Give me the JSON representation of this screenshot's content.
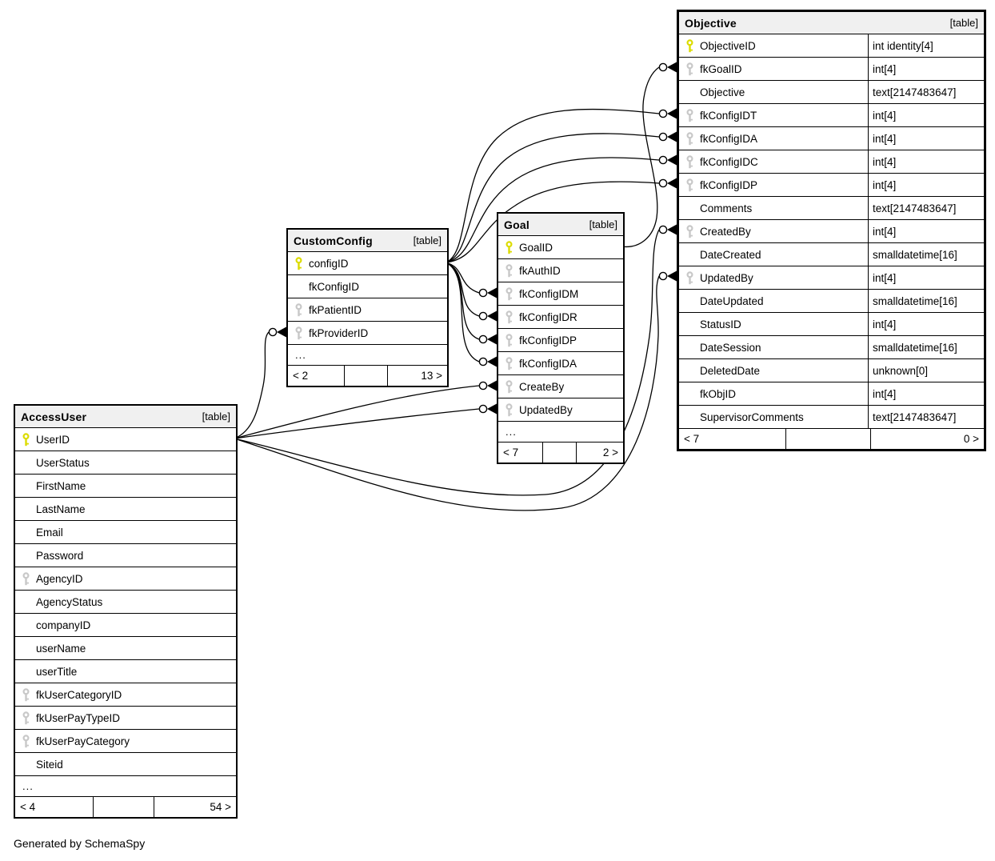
{
  "diagram": {
    "credit": "Generated by SchemaSpy",
    "tag_label": "[table]"
  },
  "colors": {
    "primary_key": "#dcdc00",
    "foreign_key": "#c8c8c8",
    "header_bg": "#f0f0f0",
    "border": "#000000",
    "line": "#000000",
    "background": "#ffffff"
  },
  "tables": [
    {
      "name": "AccessUser",
      "tag": "[table]",
      "columns": [
        {
          "name": "UserID",
          "key": "primary"
        },
        {
          "name": "UserStatus",
          "key": null
        },
        {
          "name": "FirstName",
          "key": null
        },
        {
          "name": "LastName",
          "key": null
        },
        {
          "name": "Email",
          "key": null
        },
        {
          "name": "Password",
          "key": null
        },
        {
          "name": "AgencyID",
          "key": "foreign"
        },
        {
          "name": "AgencyStatus",
          "key": null
        },
        {
          "name": "companyID",
          "key": null
        },
        {
          "name": "userName",
          "key": null
        },
        {
          "name": "userTitle",
          "key": null
        },
        {
          "name": "fkUserCategoryID",
          "key": "foreign"
        },
        {
          "name": "fkUserPayTypeID",
          "key": "foreign"
        },
        {
          "name": "fkUserPayCategory",
          "key": "foreign"
        },
        {
          "name": "Siteid",
          "key": null
        }
      ],
      "truncated": "...",
      "footer": {
        "left": "< 4",
        "mid": "",
        "right": "54 >"
      }
    },
    {
      "name": "CustomConfig",
      "tag": "[table]",
      "columns": [
        {
          "name": "configID",
          "key": "primary"
        },
        {
          "name": "fkConfigID",
          "key": null
        },
        {
          "name": "fkPatientID",
          "key": "foreign"
        },
        {
          "name": "fkProviderID",
          "key": "foreign"
        }
      ],
      "truncated": "...",
      "footer": {
        "left": "< 2",
        "mid": "",
        "right": "13 >"
      }
    },
    {
      "name": "Goal",
      "tag": "[table]",
      "columns": [
        {
          "name": "GoalID",
          "key": "primary"
        },
        {
          "name": "fkAuthID",
          "key": "foreign"
        },
        {
          "name": "fkConfigIDM",
          "key": "foreign"
        },
        {
          "name": "fkConfigIDR",
          "key": "foreign"
        },
        {
          "name": "fkConfigIDP",
          "key": "foreign"
        },
        {
          "name": "fkConfigIDA",
          "key": "foreign"
        },
        {
          "name": "CreateBy",
          "key": "foreign"
        },
        {
          "name": "UpdatedBy",
          "key": "foreign"
        }
      ],
      "truncated": "...",
      "footer": {
        "left": "< 7",
        "mid": "",
        "right": "2 >"
      }
    },
    {
      "name": "Objective",
      "tag": "[table]",
      "columns": [
        {
          "name": "ObjectiveID",
          "key": "primary",
          "type": "int identity[4]"
        },
        {
          "name": "fkGoalID",
          "key": "foreign",
          "type": "int[4]"
        },
        {
          "name": "Objective",
          "key": null,
          "type": "text[2147483647]"
        },
        {
          "name": "fkConfigIDT",
          "key": "foreign",
          "type": "int[4]"
        },
        {
          "name": "fkConfigIDA",
          "key": "foreign",
          "type": "int[4]"
        },
        {
          "name": "fkConfigIDC",
          "key": "foreign",
          "type": "int[4]"
        },
        {
          "name": "fkConfigIDP",
          "key": "foreign",
          "type": "int[4]"
        },
        {
          "name": "Comments",
          "key": null,
          "type": "text[2147483647]"
        },
        {
          "name": "CreatedBy",
          "key": "foreign",
          "type": "int[4]"
        },
        {
          "name": "DateCreated",
          "key": null,
          "type": "smalldatetime[16]"
        },
        {
          "name": "UpdatedBy",
          "key": "foreign",
          "type": "int[4]"
        },
        {
          "name": "DateUpdated",
          "key": null,
          "type": "smalldatetime[16]"
        },
        {
          "name": "StatusID",
          "key": null,
          "type": "int[4]"
        },
        {
          "name": "DateSession",
          "key": null,
          "type": "smalldatetime[16]"
        },
        {
          "name": "DeletedDate",
          "key": null,
          "type": "unknown[0]"
        },
        {
          "name": "fkObjID",
          "key": null,
          "type": "int[4]"
        },
        {
          "name": "SupervisorComments",
          "key": null,
          "type": "text[2147483647]"
        }
      ],
      "truncated": null,
      "footer": {
        "left": "< 7",
        "mid": "",
        "right": "0 >"
      }
    }
  ],
  "connections": [
    {
      "from": "CustomConfig.configID",
      "to": "Objective.fkConfigIDT"
    },
    {
      "from": "CustomConfig.configID",
      "to": "Objective.fkConfigIDA"
    },
    {
      "from": "CustomConfig.configID",
      "to": "Objective.fkConfigIDC"
    },
    {
      "from": "CustomConfig.configID",
      "to": "Objective.fkConfigIDP"
    },
    {
      "from": "CustomConfig.configID",
      "to": "Goal.fkConfigIDM"
    },
    {
      "from": "CustomConfig.configID",
      "to": "Goal.fkConfigIDR"
    },
    {
      "from": "CustomConfig.configID",
      "to": "Goal.fkConfigIDP"
    },
    {
      "from": "CustomConfig.configID",
      "to": "Goal.fkConfigIDA"
    },
    {
      "from": "Goal.GoalID",
      "to": "Objective.fkGoalID"
    },
    {
      "from": "AccessUser.UserID",
      "to": "CustomConfig.fkProviderID"
    },
    {
      "from": "AccessUser.UserID",
      "to": "Goal.CreateBy"
    },
    {
      "from": "AccessUser.UserID",
      "to": "Goal.UpdatedBy"
    },
    {
      "from": "AccessUser.UserID",
      "to": "Objective.CreatedBy"
    },
    {
      "from": "AccessUser.UserID",
      "to": "Objective.UpdatedBy"
    }
  ]
}
